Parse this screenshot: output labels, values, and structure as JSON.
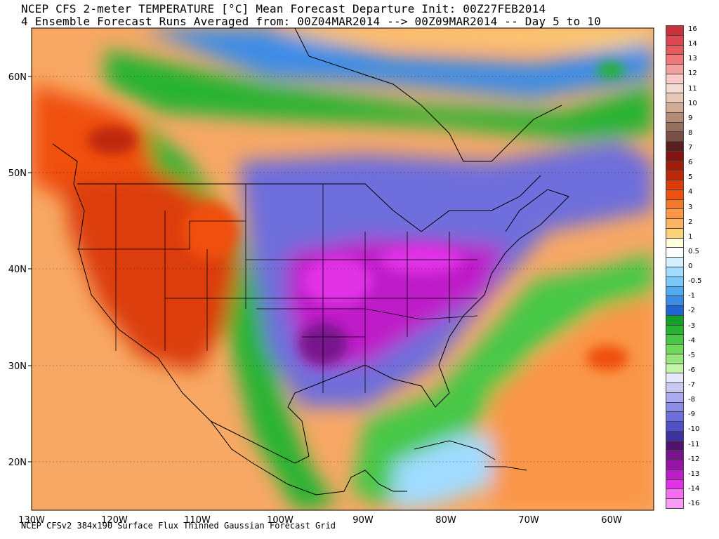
{
  "title": {
    "line1": "NCEP CFS 2-meter TEMPERATURE [°C] Mean Forecast Departure Init: 00Z27FEB2014",
    "line2": "4 Ensemble Forecast Runs Averaged from: 00Z04MAR2014 --> 00Z09MAR2014 -- Day 5 to 10"
  },
  "footer": "NCEP CFSv2 384x190 Surface Flux Thinned Gaussian Forecast Grid",
  "map": {
    "lon_labels": [
      "130W",
      "120W",
      "110W",
      "100W",
      "90W",
      "80W",
      "70W",
      "60W"
    ],
    "lat_labels": [
      "60N",
      "50N",
      "40N",
      "30N",
      "20N"
    ],
    "lon_range": [
      -130,
      -55
    ],
    "lat_range": [
      15,
      65
    ]
  },
  "colorbar": {
    "labels": [
      "16",
      "14",
      "13",
      "12",
      "11",
      "10",
      "9",
      "8",
      "7",
      "6",
      "5",
      "4",
      "3",
      "2",
      "1",
      "0.5",
      "0",
      "-0.5",
      "-1",
      "-2",
      "-3",
      "-4",
      "-5",
      "-6",
      "-7",
      "-8",
      "-9",
      "-10",
      "-11",
      "-12",
      "-13",
      "-14",
      "-16"
    ],
    "colors": [
      "#c8323c",
      "#dc4650",
      "#e65a5a",
      "#f0787d",
      "#f5a0a0",
      "#fac8c8",
      "#f0dcd2",
      "#e6c8b4",
      "#d2aa96",
      "#b48c78",
      "#96705f",
      "#785046",
      "#5a1e1e",
      "#821414",
      "#a01e0a",
      "#be280a",
      "#dc3c0a",
      "#f0500f",
      "#f57828",
      "#fa9646",
      "#fcb464",
      "#fcd278",
      "#ffffdc",
      "#ffffff",
      "#d2f0ff",
      "#a0dcff",
      "#78c8fa",
      "#50aaf0",
      "#3c8ce6",
      "#1e64d2",
      "#14a028",
      "#28b432",
      "#46c846",
      "#6edc5a",
      "#96e67d",
      "#c3f5aa",
      "#e6e6ff",
      "#c8c8f5",
      "#aaaaf0",
      "#8c8ce6",
      "#6e6edc",
      "#5050c8",
      "#3c32a0",
      "#50146e",
      "#78148c",
      "#9614aa",
      "#be1ec8",
      "#e132e6",
      "#f56ef0",
      "#fa9cf5"
    ]
  }
}
